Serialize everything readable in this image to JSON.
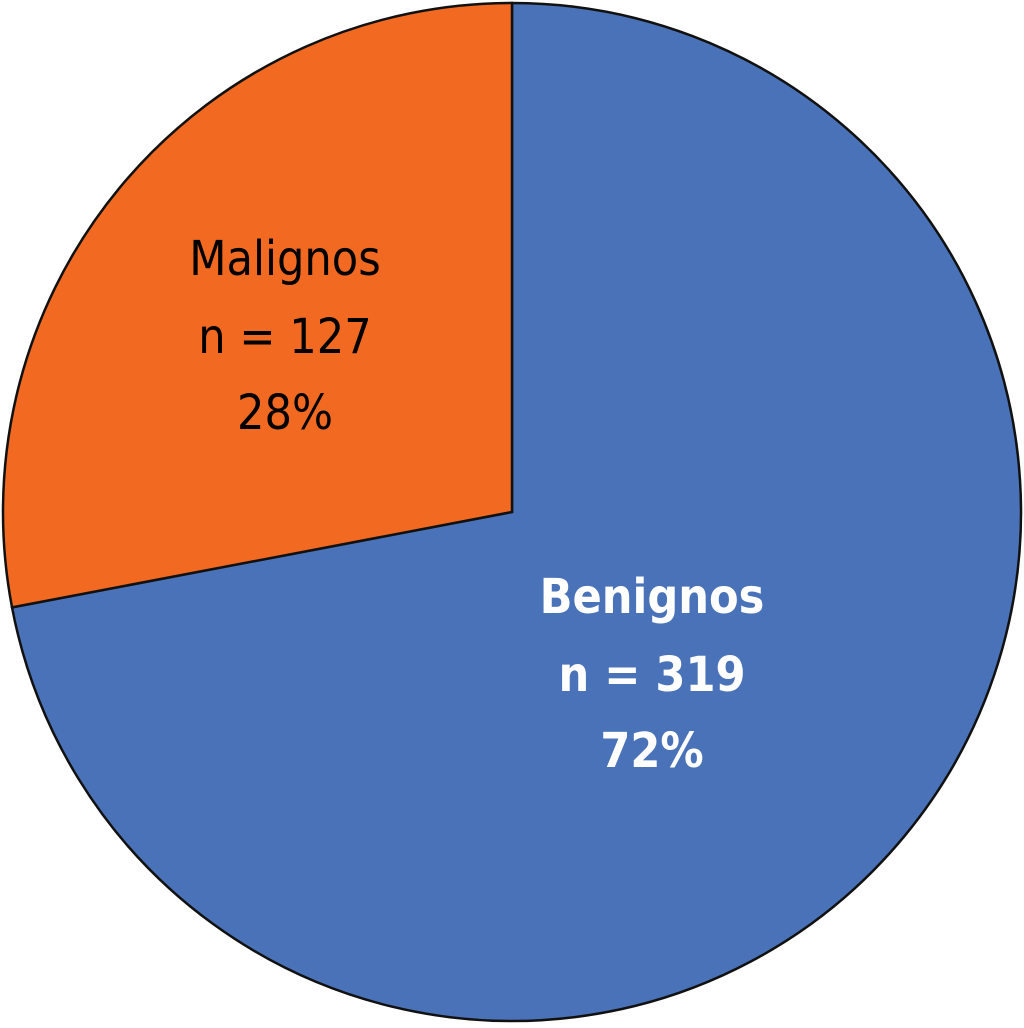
{
  "chart_data": {
    "type": "pie",
    "categories": [
      "Benignos",
      "Malignos"
    ],
    "values": [
      72,
      28
    ],
    "value_labels": [
      "72%",
      "28%"
    ],
    "counts": [
      319,
      127
    ],
    "count_labels": [
      "n = 319",
      "n = 127"
    ],
    "colors": [
      "#4a72b8",
      "#f26a21"
    ],
    "label_colors": [
      "#ffffff",
      "#000000"
    ]
  }
}
